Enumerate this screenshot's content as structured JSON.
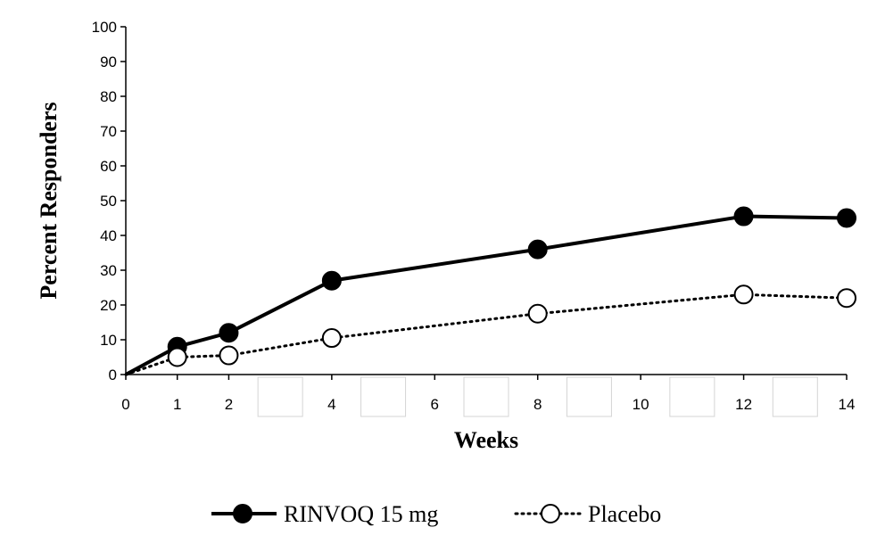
{
  "chart_data": {
    "type": "line",
    "title": "",
    "xlabel": "Weeks",
    "ylabel": "Percent Responders",
    "xlim": [
      0,
      14
    ],
    "ylim": [
      0,
      100
    ],
    "xticks": [
      "0",
      "1",
      "2",
      "4",
      "6",
      "8",
      "10",
      "12",
      "14"
    ],
    "yticks": [
      "0",
      "10",
      "20",
      "30",
      "40",
      "50",
      "60",
      "70",
      "80",
      "90",
      "100"
    ],
    "grid": false,
    "legend_position": "bottom",
    "series": [
      {
        "name": "RINVOQ 15 mg",
        "style": "solid",
        "marker": "filled-circle",
        "color": "#000000",
        "points": [
          {
            "x": 0,
            "y": 0
          },
          {
            "x": 1,
            "y": 8
          },
          {
            "x": 2,
            "y": 12
          },
          {
            "x": 4,
            "y": 27
          },
          {
            "x": 8,
            "y": 36
          },
          {
            "x": 12,
            "y": 45.5
          },
          {
            "x": 14,
            "y": 45
          }
        ]
      },
      {
        "name": "Placebo",
        "style": "dotted",
        "marker": "open-circle",
        "color": "#000000",
        "points": [
          {
            "x": 0,
            "y": 0
          },
          {
            "x": 1,
            "y": 5
          },
          {
            "x": 2,
            "y": 5.5
          },
          {
            "x": 4,
            "y": 10.5
          },
          {
            "x": 8,
            "y": 17.5
          },
          {
            "x": 12,
            "y": 23
          },
          {
            "x": 14,
            "y": 22
          }
        ]
      }
    ],
    "placeholder_boxes_between_ticks": [
      3,
      5,
      7,
      9,
      11,
      13
    ]
  }
}
